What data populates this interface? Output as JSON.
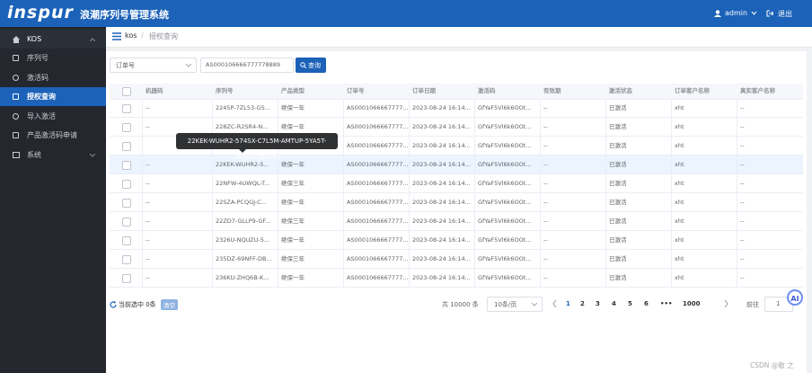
{
  "header": {
    "logo": "inspur",
    "title": "浪潮序列号管理系统",
    "user": "admin",
    "logout": "退出"
  },
  "sidebar": {
    "root": "KOS",
    "items": [
      {
        "label": "序列号"
      },
      {
        "label": "激活码"
      },
      {
        "label": "授权查询",
        "active": true
      },
      {
        "label": "导入激活"
      },
      {
        "label": "产品激活码申请"
      }
    ],
    "system": "系统"
  },
  "breadcrumb": [
    "kos",
    "授权查询"
  ],
  "search": {
    "field": "订单号",
    "query": "AS000106666777778889",
    "button": "查询"
  },
  "table": {
    "columns": [
      "机器码",
      "序列号",
      "产品类型",
      "订单号",
      "订单日期",
      "激活码",
      "有效期",
      "激活状态",
      "订单客户名称",
      "真实客户名称"
    ],
    "rows": [
      [
        "--",
        "2245P-7ZL53-G5...",
        "继保一年",
        "AS0001066667777...",
        "2023-08-24 16:14...",
        "GfYaF5Vl6k6OOt...",
        "--",
        "已激活",
        "xht",
        "--"
      ],
      [
        "--",
        "228ZC-R2SR4-N...",
        "继保一年",
        "AS0001066667777...",
        "2023-08-24 16:14...",
        "GfYaF5Vl6k6OOt...",
        "--",
        "已激活",
        "xht",
        "--"
      ],
      [
        null,
        null,
        null,
        "AS0001066667777...",
        "2023-08-24 16:14...",
        "GfYaF5Vl6k6OOt...",
        "--",
        "已激活",
        "xht",
        "--"
      ],
      [
        "--",
        "22KEK-WUHR2-5...",
        "继保一年",
        "AS0001066667777...",
        "2023-08-24 16:14...",
        "GfYaF5Vl6k6OOt...",
        "--",
        "已激活",
        "xht",
        "--"
      ],
      [
        "--",
        "22NFW-4UWQL-T...",
        "继保三年",
        "AS0001066667777...",
        "2023-08-24 16:14...",
        "GfYaF5Vl6k6OOt...",
        "--",
        "已激活",
        "xht",
        "--"
      ],
      [
        "--",
        "22SZA-PCQGJ-C...",
        "继保一年",
        "AS0001066667777...",
        "2023-08-24 16:14...",
        "GfYaF5Vl6k6OOt...",
        "--",
        "已激活",
        "xht",
        "--"
      ],
      [
        "--",
        "22ZD7-GLLP9-GF...",
        "继保三年",
        "AS0001066667777...",
        "2023-08-24 16:14...",
        "GfYaF5Vl6k6OOt...",
        "--",
        "已激活",
        "xht",
        "--"
      ],
      [
        "--",
        "2326U-NQUZU-5...",
        "继保一年",
        "AS0001066667777...",
        "2023-08-24 16:14...",
        "GfYaF5Vl6k6OOt...",
        "--",
        "已激活",
        "xht",
        "--"
      ],
      [
        "--",
        "235DZ-69NFF-DB...",
        "继保三年",
        "AS0001066667777...",
        "2023-08-24 16:14...",
        "GfYaF5Vl6k6OOt...",
        "--",
        "已激活",
        "xht",
        "--"
      ],
      [
        "--",
        "236KU-ZHQ6B-K...",
        "继保一年",
        "AS0001066667777...",
        "2023-08-24 16:14...",
        "GfYaF5Vl6k6OOt...",
        "--",
        "已激活",
        "xht",
        "--"
      ]
    ]
  },
  "tooltip": "22KEK-WUHR2-574SX-C7L5M-AMTUP-5YA5T-XBENS-ZBUYH",
  "footer": {
    "selected": "当前选中 0条",
    "clear": "清空",
    "total": "共 10000 条",
    "page_size": "10条/页",
    "pages": [
      {
        "label": "1",
        "active": true
      },
      {
        "label": "2"
      },
      {
        "label": "3"
      },
      {
        "label": "4"
      },
      {
        "label": "5"
      },
      {
        "label": "6"
      },
      {
        "label": "•••"
      },
      {
        "label": "1000"
      }
    ],
    "goto": "前往",
    "goto_value": "1"
  },
  "watermark": "CSDN @敬 之",
  "assistant": "AI"
}
